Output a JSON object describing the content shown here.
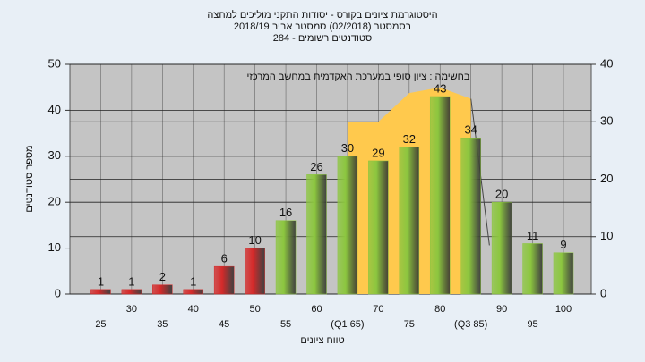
{
  "chart_data": {
    "type": "bar",
    "title": "היסטוגרמת ציונים בקורס - יסודות התקני מוליכים למחצה",
    "subtitle": "בסמסטר  (02/2018)  סמסטר אביב  2018/19",
    "subtitle2": "סטודנטים רשומים - 284",
    "annotation": "בחשימה : ציון סופי במערכת האקדמית במחשב המרכזי",
    "ylabel": "מספר סטודנטים",
    "xlabel": "טווח ציונים",
    "categories": [
      "25",
      "30",
      "35",
      "40",
      "45",
      "50",
      "55",
      "60",
      "(Q1 65)",
      "70",
      "75",
      "80",
      "(Q3 85)",
      "90",
      "95",
      "100"
    ],
    "values": [
      1,
      1,
      2,
      1,
      6,
      10,
      16,
      26,
      30,
      29,
      32,
      43,
      34,
      20,
      11,
      9
    ],
    "colors": [
      "#d42a2a",
      "#d42a2a",
      "#d42a2a",
      "#d42a2a",
      "#d42a2a",
      "#d42a2a",
      "#8cc63f",
      "#8cc63f",
      "#8cc63f",
      "#8cc63f",
      "#8cc63f",
      "#8cc63f",
      "#8cc63f",
      "#8cc63f",
      "#8cc63f",
      "#8cc63f"
    ],
    "area": {
      "axis": "y2",
      "color": "#ffc94d",
      "values": [
        null,
        null,
        null,
        null,
        null,
        null,
        null,
        null,
        30,
        30,
        35,
        36,
        34,
        null,
        null,
        null
      ]
    },
    "ylim": [
      0,
      50
    ],
    "yticks": [
      0,
      10,
      20,
      30,
      40,
      50
    ],
    "y2lim": [
      0,
      40
    ],
    "y2ticks": [
      0,
      10,
      20,
      30,
      40
    ],
    "grid": true
  }
}
